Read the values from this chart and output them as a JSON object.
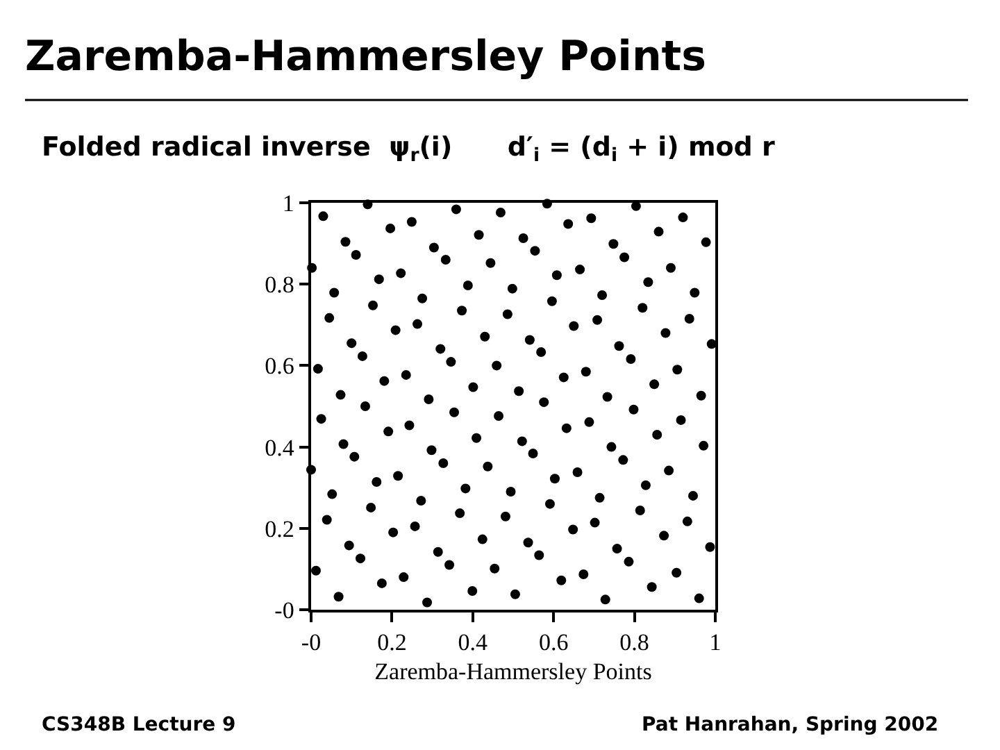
{
  "chart_data": {
    "type": "scatter",
    "title": "Zaremba-Hammersley Points",
    "subtitle": "Folded radical inverse  ψ$_{r}$(i)      d′$_{i}$ = (d$_{i}$ + i) mod r",
    "xlabel": "Zaremba-Hammersley Points",
    "annotations": [
      "CS348B Lecture 9",
      "Pat Hanrahan, Spring 2002"
    ],
    "marker": "circle",
    "xlim": [
      0,
      1
    ],
    "ylim": [
      0,
      1
    ],
    "xticks": [
      {
        "value": 0,
        "label": "-0"
      },
      0.2,
      0.4,
      0.6,
      0.8,
      1
    ],
    "yticks": [
      {
        "value": 0,
        "label": "-0"
      },
      0.2,
      0.4,
      0.6,
      0.8,
      1
    ],
    "series": [
      {
        "color": "#000000",
        "x": [
          0.14,
          0.03,
          0.359,
          0.469,
          0.196,
          0.249,
          0.085,
          0.111,
          0.415,
          0.304,
          0.333,
          0.444,
          0.002,
          0.222,
          0.168,
          0.388,
          0.498,
          0.057,
          0.275,
          0.153,
          0.373,
          0.486,
          0.045,
          0.263,
          0.209,
          0.43,
          0.1,
          0.127,
          0.32,
          0.346,
          0.459,
          0.017,
          0.235,
          0.181,
          0.401,
          0.073,
          0.291,
          0.584,
          0.804,
          0.636,
          0.693,
          0.92,
          0.525,
          0.554,
          0.86,
          0.977,
          0.748,
          0.775,
          0.608,
          0.665,
          0.89,
          0.834,
          0.596,
          0.72,
          0.949,
          0.82,
          0.65,
          0.708,
          0.936,
          0.877,
          0.541,
          0.569,
          0.762,
          0.791,
          0.991,
          0.625,
          0.68,
          0.906,
          0.514,
          0.849,
          0.733,
          0.965,
          0.576,
          0.134,
          0.025,
          0.354,
          0.464,
          0.191,
          0.243,
          0.08,
          0.107,
          0.409,
          0.298,
          0.327,
          0.437,
          0.0,
          0.162,
          0.215,
          0.382,
          0.494,
          0.052,
          0.272,
          0.148,
          0.368,
          0.481,
          0.039,
          0.203,
          0.257,
          0.424,
          0.094,
          0.122,
          0.314,
          0.342,
          0.454,
          0.012,
          0.175,
          0.229,
          0.399,
          0.068,
          0.287,
          0.505,
          0.798,
          0.632,
          0.688,
          0.915,
          0.522,
          0.549,
          0.856,
          0.971,
          0.743,
          0.772,
          0.603,
          0.659,
          0.885,
          0.828,
          0.591,
          0.714,
          0.945,
          0.814,
          0.648,
          0.702,
          0.931,
          0.873,
          0.537,
          0.564,
          0.757,
          0.786,
          0.987,
          0.619,
          0.674,
          0.904,
          0.843,
          0.728,
          0.96
        ],
        "values": [
          0.996,
          0.967,
          0.984,
          0.976,
          0.937,
          0.953,
          0.904,
          0.872,
          0.921,
          0.89,
          0.86,
          0.852,
          0.84,
          0.827,
          0.812,
          0.797,
          0.789,
          0.779,
          0.765,
          0.748,
          0.735,
          0.726,
          0.717,
          0.702,
          0.687,
          0.671,
          0.655,
          0.623,
          0.641,
          0.609,
          0.6,
          0.592,
          0.577,
          0.562,
          0.547,
          0.528,
          0.517,
          0.998,
          0.992,
          0.948,
          0.962,
          0.964,
          0.913,
          0.882,
          0.929,
          0.903,
          0.899,
          0.866,
          0.822,
          0.836,
          0.84,
          0.805,
          0.758,
          0.773,
          0.779,
          0.742,
          0.697,
          0.712,
          0.715,
          0.68,
          0.663,
          0.633,
          0.648,
          0.616,
          0.653,
          0.571,
          0.585,
          0.59,
          0.537,
          0.554,
          0.523,
          0.526,
          0.51,
          0.5,
          0.469,
          0.485,
          0.476,
          0.438,
          0.453,
          0.407,
          0.376,
          0.422,
          0.392,
          0.36,
          0.352,
          0.344,
          0.314,
          0.329,
          0.298,
          0.29,
          0.284,
          0.268,
          0.251,
          0.237,
          0.229,
          0.221,
          0.19,
          0.205,
          0.173,
          0.158,
          0.126,
          0.142,
          0.11,
          0.101,
          0.096,
          0.065,
          0.08,
          0.046,
          0.032,
          0.018,
          0.038,
          0.492,
          0.446,
          0.461,
          0.466,
          0.414,
          0.384,
          0.43,
          0.403,
          0.4,
          0.368,
          0.322,
          0.338,
          0.342,
          0.306,
          0.26,
          0.275,
          0.28,
          0.244,
          0.197,
          0.214,
          0.217,
          0.182,
          0.165,
          0.134,
          0.15,
          0.118,
          0.154,
          0.072,
          0.087,
          0.091,
          0.056,
          0.025,
          0.028
        ]
      }
    ]
  }
}
